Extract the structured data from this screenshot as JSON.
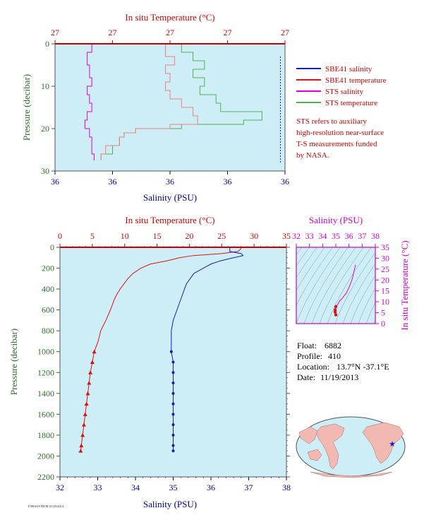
{
  "meta_line": "P/IBA6/5/DLM 01/20/2014",
  "colors": {
    "plot_bg": "#cdeef7",
    "temperature": "#e01010",
    "salinity": "#1020c0",
    "sts_salinity": "#dd00dd",
    "sts_temperature": "#50b050",
    "sts_temp_pink": "#f08080",
    "temp_axis": "#cc0000",
    "sal_axis": "#000099",
    "pressure_axis": "#2f6b2f",
    "ts_axis": "#cc00cc"
  },
  "top_plot": {
    "top_axis_title": "In situ Temperature (°C)",
    "top_tick_labels": [
      "27",
      "27",
      "27",
      "27",
      "27"
    ],
    "bottom_axis_title": "Salinity (PSU)",
    "bottom_tick_labels": [
      "36",
      "36",
      "36",
      "36",
      "36"
    ],
    "left_axis_title": "Pressure (decibar)",
    "left_tick_labels": [
      "0",
      "10",
      "20",
      "30"
    ]
  },
  "legend": {
    "items": [
      {
        "label": "SBE41 salinity",
        "color": "#1020c0"
      },
      {
        "label": "SBE41 temperature",
        "color": "#e01010"
      },
      {
        "label": "STS salinity",
        "color": "#dd00dd"
      },
      {
        "label": "STS temperature",
        "color": "#50b050"
      }
    ],
    "note": [
      "STS refers to auxiliary",
      "high-resolution near-surface",
      "T-S measurements funded",
      "by NASA."
    ]
  },
  "main_plot": {
    "top_axis_title": "In situ Temperature (°C)",
    "top_tick_labels": [
      "0",
      "5",
      "10",
      "15",
      "20",
      "25",
      "30",
      "35"
    ],
    "bottom_axis_title": "Salinity (PSU)",
    "bottom_tick_labels": [
      "32",
      "33",
      "34",
      "35",
      "36",
      "37",
      "38"
    ],
    "left_axis_title": "Pressure (decibar)",
    "left_tick_labels": [
      "0",
      "200",
      "400",
      "600",
      "800",
      "1000",
      "1200",
      "1400",
      "1600",
      "1800",
      "2000",
      "2200"
    ]
  },
  "ts_plot": {
    "top_axis_title": "Salinity (PSU)",
    "top_tick_labels": [
      "32",
      "33",
      "34",
      "35",
      "36",
      "37",
      "38"
    ],
    "right_axis_title": "In situ Temperature (°C)",
    "right_tick_labels": [
      "0",
      "5",
      "10",
      "15",
      "20",
      "25",
      "30",
      "35"
    ]
  },
  "info": {
    "float_label": "Float:",
    "float_value": "6882",
    "profile_label": "Profile:",
    "profile_value": "410",
    "location_label": "Location:",
    "location_value": "13.7°N  -37.1°E",
    "date_label": "Date:",
    "date_value": "11/19/2013"
  },
  "chart_data": [
    {
      "type": "line",
      "title": "",
      "x_top_label": "In situ Temperature (°C)",
      "x_bottom_label": "Salinity (PSU)",
      "ylabel": "Pressure (decibar)",
      "ylim": [
        30,
        0
      ],
      "grid": false,
      "legend": "right",
      "series": [
        {
          "name": "SBE41 salinity",
          "pressure": [
            3,
            28
          ],
          "values": [
            0.98,
            0.98
          ]
        },
        {
          "name": "STS salinity",
          "pressure": [
            0,
            2,
            5,
            8,
            10,
            12,
            14,
            16,
            18,
            20,
            22,
            24,
            26,
            27.5
          ],
          "values": [
            0.15,
            0.16,
            0.14,
            0.15,
            0.16,
            0.14,
            0.15,
            0.16,
            0.14,
            0.13,
            0.15,
            0.16,
            0.16,
            0.17
          ]
        },
        {
          "name": "STS temperature",
          "pressure": [
            0,
            2,
            4,
            6,
            8,
            10,
            12,
            14,
            16,
            18,
            19,
            20,
            21,
            22,
            24,
            26,
            27.5
          ],
          "values": [
            0.5,
            0.55,
            0.6,
            0.65,
            0.6,
            0.65,
            0.63,
            0.7,
            0.72,
            0.9,
            0.82,
            0.55,
            0.35,
            0.3,
            0.28,
            0.25,
            0.2
          ]
        },
        {
          "name": "SBE41 temperature",
          "pressure": [
            0,
            3,
            5,
            7,
            9,
            11,
            13,
            15,
            17,
            19,
            20,
            21,
            22,
            24,
            26,
            27.5
          ],
          "values": [
            0.5,
            0.48,
            0.52,
            0.48,
            0.5,
            0.48,
            0.5,
            0.55,
            0.6,
            0.62,
            0.5,
            0.35,
            0.3,
            0.28,
            0.22,
            0.2
          ]
        }
      ]
    },
    {
      "type": "line",
      "title": "",
      "x_top_label": "In situ Temperature (°C)",
      "x_top_range": [
        0,
        35
      ],
      "x_bottom_label": "Salinity (PSU)",
      "x_bottom_range": [
        32,
        38
      ],
      "ylabel": "Pressure (decibar)",
      "ylim": [
        2200,
        0
      ],
      "grid": false,
      "series": [
        {
          "name": "Temperature",
          "axis": "top",
          "pressure": [
            0,
            20,
            40,
            60,
            80,
            100,
            130,
            160,
            200,
            250,
            300,
            350,
            400,
            450,
            500,
            600,
            700,
            800,
            900,
            1000,
            1100,
            1200,
            1300,
            1400,
            1500,
            1600,
            1700,
            1800,
            1900,
            1950
          ],
          "values": [
            28.0,
            27.9,
            27.5,
            25.0,
            20.5,
            18.5,
            16.5,
            14.0,
            12.5,
            11.3,
            10.5,
            9.9,
            9.3,
            8.8,
            8.4,
            7.8,
            7.1,
            6.3,
            5.9,
            5.3,
            5.0,
            4.7,
            4.5,
            4.3,
            4.1,
            3.9,
            3.7,
            3.5,
            3.3,
            3.2
          ]
        },
        {
          "name": "Salinity",
          "axis": "bottom",
          "pressure": [
            0,
            20,
            40,
            60,
            80,
            100,
            130,
            160,
            200,
            250,
            300,
            350,
            400,
            450,
            500,
            600,
            700,
            800,
            900,
            1000,
            1100,
            1200,
            1300,
            1400,
            1500,
            1600,
            1700,
            1800,
            1900,
            1950
          ],
          "values": [
            36.5,
            36.5,
            36.5,
            36.8,
            36.85,
            36.6,
            36.25,
            36.0,
            35.8,
            35.55,
            35.45,
            35.35,
            35.3,
            35.25,
            35.2,
            35.1,
            35.0,
            34.95,
            34.95,
            34.95,
            35.0,
            35.0,
            35.0,
            35.0,
            35.0,
            35.0,
            35.0,
            35.0,
            35.0,
            35.0
          ]
        }
      ]
    },
    {
      "type": "line",
      "title": "",
      "xlabel": "Salinity (PSU)",
      "xlim": [
        32,
        38
      ],
      "ylabel": "In situ Temperature (°C)",
      "ylim": [
        0,
        35
      ],
      "series": [
        {
          "name": "T-S curve",
          "x": [
            35.0,
            34.95,
            34.95,
            35.0,
            35.1,
            35.2,
            35.3,
            35.45,
            35.6,
            35.8,
            36.0,
            36.25,
            36.5
          ],
          "y": [
            4.0,
            5.3,
            6.3,
            7.8,
            8.4,
            9.3,
            10.5,
            11.3,
            12.5,
            14.0,
            16.5,
            20.5,
            27.0
          ]
        }
      ]
    }
  ]
}
